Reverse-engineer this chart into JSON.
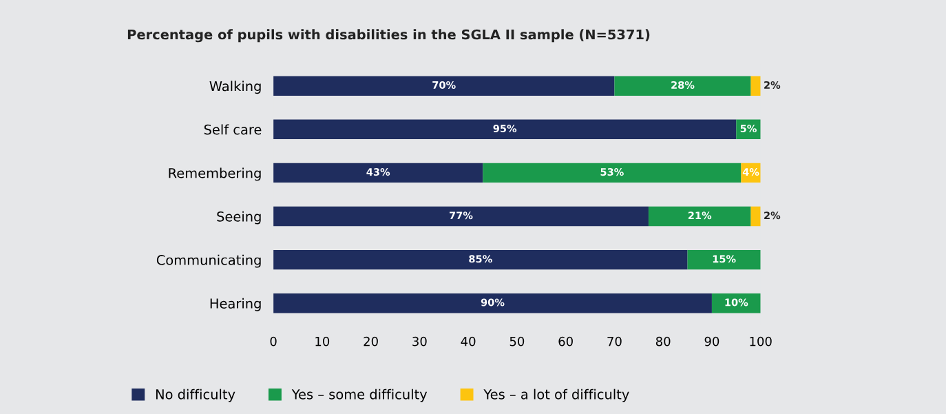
{
  "chart_data": {
    "type": "bar",
    "orientation": "horizontal",
    "stacked": true,
    "title": "Percentage of pupils with disabilities in the SGLA II sample (N=5371)",
    "categories": [
      "Walking",
      "Self care",
      "Remembering",
      "Seeing",
      "Communicating",
      "Hearing"
    ],
    "series": [
      {
        "name": "No difficulty",
        "color": "#1f2d5e",
        "values": [
          70,
          95,
          43,
          77,
          85,
          90
        ],
        "value_labels": [
          "70%",
          "95%",
          "43%",
          "77%",
          "85%",
          "90%"
        ]
      },
      {
        "name": "Yes – some difficulty",
        "color": "#1a9a4c",
        "values": [
          28,
          5,
          53,
          21,
          15,
          10
        ],
        "value_labels": [
          "28%",
          "5%",
          "53%",
          "21%",
          "15%",
          "10%"
        ]
      },
      {
        "name": "Yes – a lot of difficulty",
        "color": "#fdc40f",
        "values": [
          2,
          null,
          4,
          2,
          null,
          null
        ],
        "value_labels": [
          "2%",
          null,
          "4%",
          "2%",
          null,
          null
        ]
      }
    ],
    "xlim": [
      0,
      100
    ],
    "xticks": [
      0,
      10,
      20,
      30,
      40,
      50,
      60,
      70,
      80,
      90,
      100
    ],
    "grid": false,
    "legend": "bottom"
  }
}
